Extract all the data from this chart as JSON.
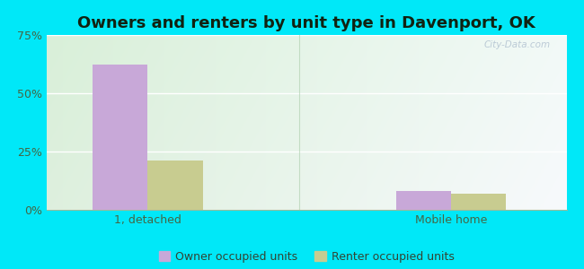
{
  "title": "Owners and renters by unit type in Davenport, OK",
  "categories": [
    "1, detached",
    "Mobile home"
  ],
  "owner_values": [
    62.5,
    8.0
  ],
  "renter_values": [
    21.0,
    7.0
  ],
  "owner_color": "#c8a8d8",
  "renter_color": "#c8cc90",
  "bar_width": 0.38,
  "ylim": [
    0,
    75
  ],
  "yticks": [
    0,
    25,
    50,
    75
  ],
  "yticklabels": [
    "0%",
    "25%",
    "50%",
    "75%"
  ],
  "legend_owner": "Owner occupied units",
  "legend_renter": "Renter occupied units",
  "bg_color": "#00e8f8",
  "watermark": "City-Data.com",
  "title_fontsize": 13,
  "tick_fontsize": 9,
  "legend_fontsize": 9,
  "group_positions": [
    0.7,
    2.8
  ],
  "xlim": [
    0.0,
    3.6
  ]
}
